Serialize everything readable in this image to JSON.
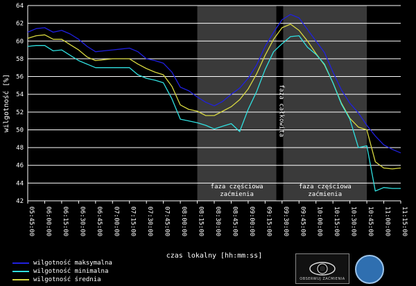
{
  "chart_data": {
    "type": "line",
    "xlabel": "czas lokalny [hh:mm:ss]",
    "ylabel": "wilgotność [%]",
    "ylim": [
      42,
      64
    ],
    "yticks": [
      42,
      44,
      46,
      48,
      50,
      52,
      54,
      56,
      58,
      60,
      62,
      64
    ],
    "xticks": [
      "05:45:00",
      "06:00:00",
      "06:15:00",
      "06:30:00",
      "06:45:00",
      "07:00:00",
      "07:15:00",
      "07:30:00",
      "07:45:00",
      "08:00:00",
      "08:15:00",
      "08:30:00",
      "08:45:00",
      "09:00:00",
      "09:15:00",
      "09:30:00",
      "09:45:00",
      "10:00:00",
      "10:15:00",
      "10:30:00",
      "10:45:00",
      "11:00:00",
      "11:15:00"
    ],
    "grid": true,
    "legend_position": "bottom-left",
    "annotations": {
      "partial1": [
        "faza częściowa",
        "zaćmienia"
      ],
      "total": "faza całkowita",
      "partial2": [
        "faza częściowa",
        "zaćmienia"
      ]
    },
    "shaded_regions": [
      {
        "name": "partial1",
        "from": "08:15:00",
        "to": "09:25:00",
        "color": "#3a3a3a"
      },
      {
        "name": "total",
        "from": "09:25:00",
        "to": "09:31:00",
        "color": "#000000"
      },
      {
        "name": "partial2",
        "from": "09:31:00",
        "to": "10:45:00",
        "color": "#3a3a3a"
      }
    ],
    "x": [
      "05:45:00",
      "05:52:30",
      "06:00:00",
      "06:07:30",
      "06:15:00",
      "06:22:30",
      "06:30:00",
      "06:37:30",
      "06:45:00",
      "06:52:30",
      "07:00:00",
      "07:07:30",
      "07:15:00",
      "07:22:30",
      "07:30:00",
      "07:37:30",
      "07:45:00",
      "07:52:30",
      "08:00:00",
      "08:07:30",
      "08:15:00",
      "08:22:30",
      "08:30:00",
      "08:37:30",
      "08:45:00",
      "08:52:30",
      "09:00:00",
      "09:07:30",
      "09:15:00",
      "09:22:30",
      "09:30:00",
      "09:37:30",
      "09:45:00",
      "09:52:30",
      "10:00:00",
      "10:07:30",
      "10:15:00",
      "10:22:30",
      "10:30:00",
      "10:37:30",
      "10:45:00",
      "10:52:30",
      "11:00:00",
      "11:07:30",
      "11:15:00"
    ],
    "series": [
      {
        "name": "wilgotność maksymalna",
        "color": "#2020e0",
        "values": [
          61.0,
          61.4,
          61.5,
          61.0,
          61.2,
          60.8,
          60.2,
          59.4,
          58.8,
          58.9,
          59.0,
          59.1,
          59.2,
          58.8,
          58.0,
          57.8,
          57.5,
          56.5,
          54.8,
          54.4,
          53.7,
          53.1,
          52.7,
          53.2,
          54.0,
          54.7,
          55.8,
          57.3,
          59.4,
          61.0,
          62.4,
          63.0,
          62.6,
          61.3,
          60.0,
          58.7,
          56.5,
          54.5,
          53.0,
          51.9,
          50.5,
          49.3,
          48.3,
          47.8,
          47.4
        ]
      },
      {
        "name": "wilgotność średnia",
        "color": "#d8d840",
        "values": [
          60.3,
          60.6,
          60.7,
          60.2,
          60.2,
          59.6,
          59.0,
          58.2,
          57.8,
          57.9,
          58.0,
          58.0,
          58.0,
          57.4,
          56.9,
          56.5,
          56.2,
          54.9,
          52.8,
          52.3,
          52.1,
          51.6,
          51.6,
          52.1,
          52.6,
          53.4,
          54.6,
          56.3,
          58.4,
          60.2,
          61.5,
          61.9,
          61.2,
          60.0,
          58.6,
          57.3,
          55.3,
          53.0,
          51.3,
          50.3,
          50.0,
          46.4,
          45.7,
          45.6,
          45.7
        ]
      },
      {
        "name": "wilgotność minimalna",
        "color": "#30e0e0",
        "values": [
          59.4,
          59.5,
          59.5,
          58.9,
          59.0,
          58.4,
          57.8,
          57.4,
          57.0,
          57.0,
          57.0,
          57.0,
          57.0,
          56.2,
          55.8,
          55.6,
          55.3,
          53.5,
          51.2,
          51.0,
          50.8,
          50.5,
          50.1,
          50.4,
          50.7,
          49.8,
          52.3,
          54.3,
          56.8,
          58.8,
          59.7,
          60.5,
          60.6,
          59.3,
          58.5,
          57.4,
          55.3,
          52.9,
          51.2,
          48.0,
          48.2,
          43.1,
          43.5,
          43.4,
          43.4
        ]
      }
    ]
  },
  "legend": [
    {
      "label": "wilgotność maksymalna",
      "color": "#2020e0"
    },
    {
      "label": "wilgotność minimalna",
      "color": "#30e0e0"
    },
    {
      "label": "wilgotność średnia",
      "color": "#d8d840"
    }
  ],
  "logos": {
    "observatory_text": "OBSERWUJ ZAĆMIENIA"
  }
}
